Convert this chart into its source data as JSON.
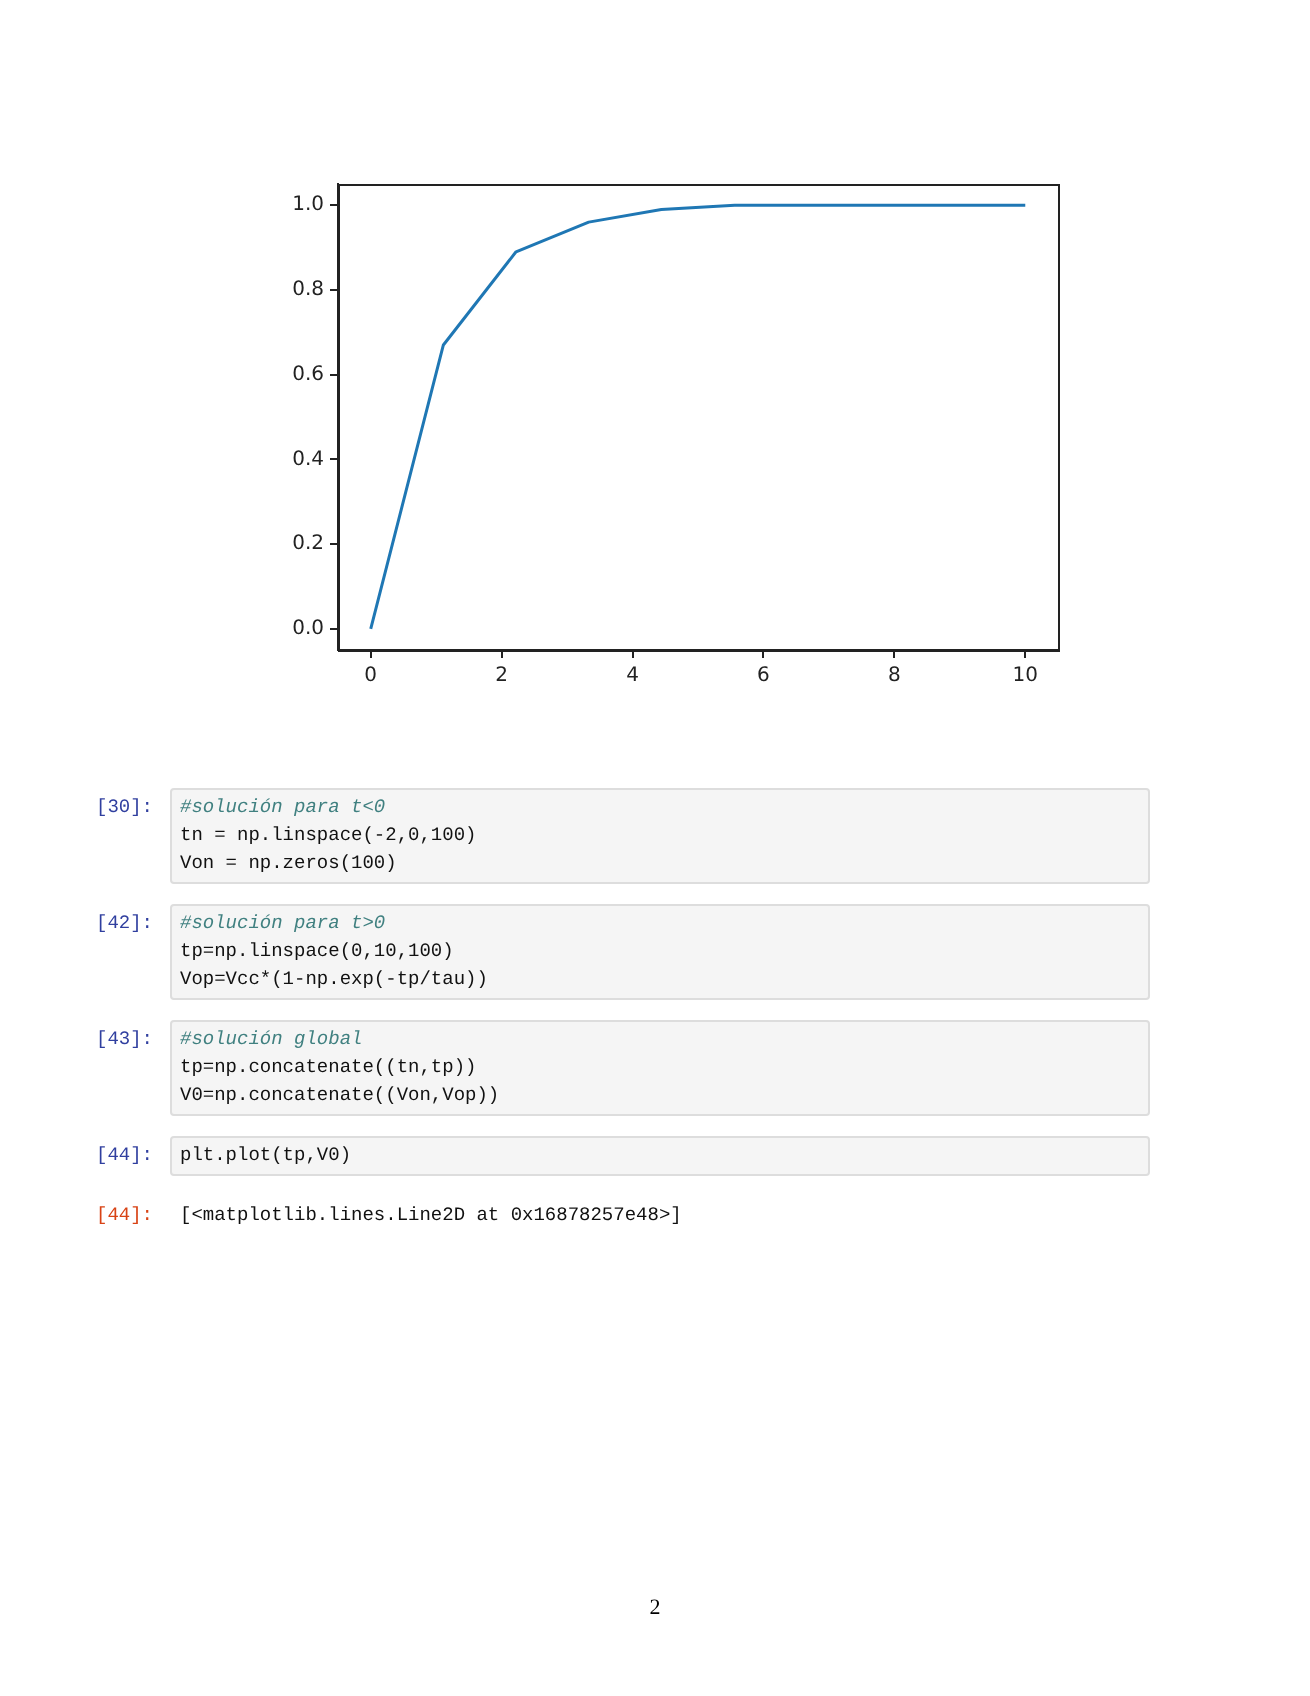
{
  "chart_data": {
    "type": "line",
    "x": [
      0,
      1.11,
      2.22,
      3.33,
      4.44,
      5.56,
      6.67,
      7.78,
      8.89,
      10
    ],
    "series": [
      {
        "color": "#1f77b4",
        "values": [
          0,
          0.67,
          0.89,
          0.96,
          0.99,
          1.0,
          1.0,
          1.0,
          1.0,
          1.0
        ]
      }
    ],
    "xlim": [
      -0.5,
      10.5
    ],
    "ylim": [
      -0.05,
      1.05
    ],
    "xticks": [
      0,
      2,
      4,
      6,
      8,
      10
    ],
    "yticks": [
      {
        "value": 0,
        "label": "0.0"
      },
      {
        "value": 0.2,
        "label": "0.2"
      },
      {
        "value": 0.4,
        "label": "0.4"
      },
      {
        "value": 0.6,
        "label": "0.6"
      },
      {
        "value": 0.8,
        "label": "0.8"
      },
      {
        "value": 1.0,
        "label": "1.0"
      }
    ],
    "grid": false,
    "legend": false,
    "marker": "none",
    "line_style": "solid",
    "annotations": [
      "[30]: #solución para t<0\ntn = np.linspace(-2,0,100)\nVon = np.zeros(100)",
      "[42]: #solución para t>0\ntp=np.linspace(0,10,100)\nVop=Vcc*(1-np.exp(-tp/tau))",
      "[43]: #solución global\ntp=np.concatenate((tn,tp))\nV0=np.concatenate((Von,Vop))",
      "[44]: plt.plot(tp,V0)",
      "[44]: [<matplotlib.lines.Line2D at 0x16878257e48>]",
      "2"
    ]
  }
}
